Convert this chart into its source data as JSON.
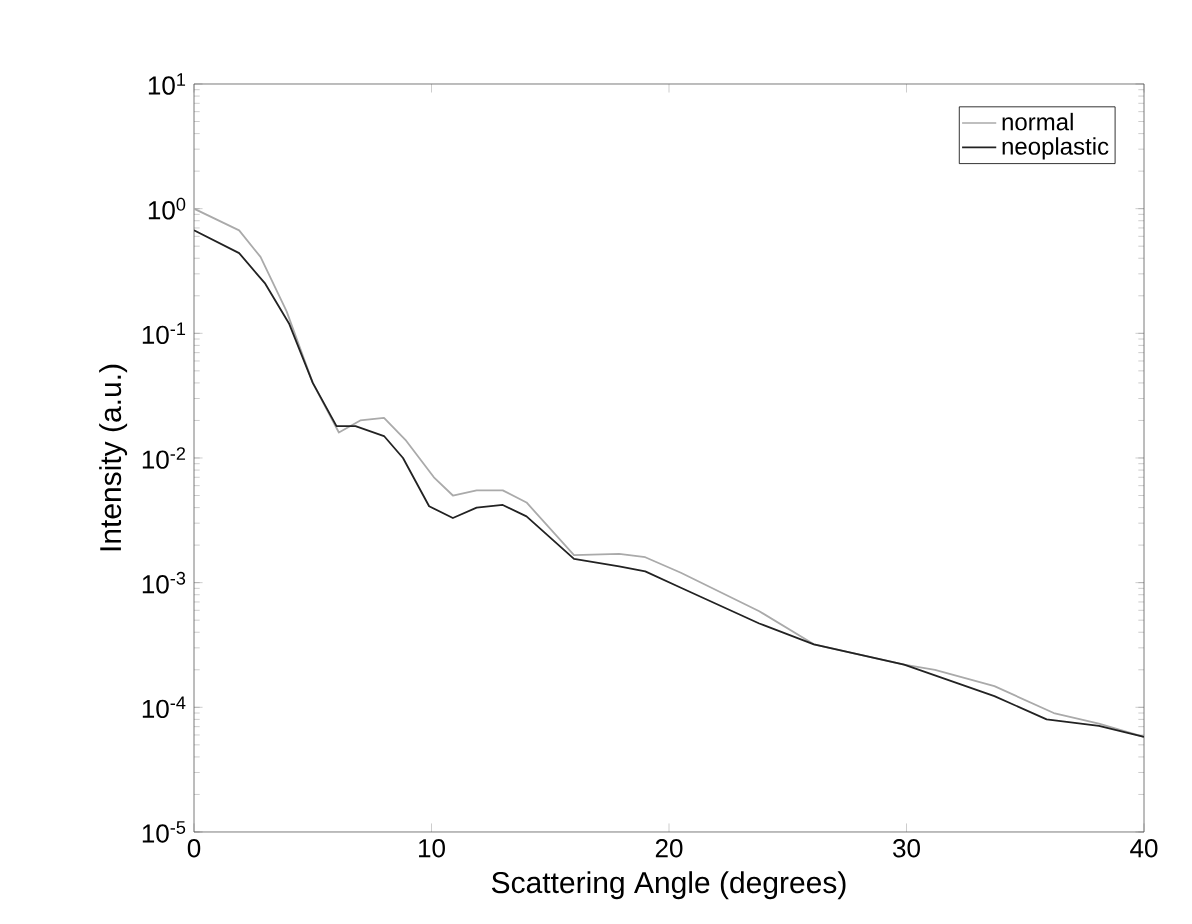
{
  "chart_data": {
    "type": "line",
    "xlabel": "Scattering Angle (degrees)",
    "ylabel": "Intensity (a.u.)",
    "log": "y",
    "legend": "top right",
    "grid": false,
    "marker": "none",
    "line_style": "solid",
    "xlim": [
      0,
      40
    ],
    "xticks": [
      0,
      10,
      20,
      30,
      40
    ],
    "ylim": [
      1e-05,
      10
    ],
    "yticks": [
      {
        "value": 1e-05,
        "label": "10$^{-5}$"
      },
      {
        "value": 0.0001,
        "label": "10$^{-4}$"
      },
      {
        "value": 0.001,
        "label": "10$^{-3}$"
      },
      {
        "value": 0.01,
        "label": "10$^{-2}$"
      },
      {
        "value": 0.1,
        "label": "10$^{-1}$"
      },
      {
        "value": 1,
        "label": "10$^{0}$"
      },
      {
        "value": 10,
        "label": "10$^{1}$"
      }
    ],
    "series": [
      {
        "name": "normal",
        "color": "#aaaaaa",
        "x": [
          0,
          1.9,
          2.8,
          3.9,
          5,
          6.1,
          7,
          8,
          8.9,
          10.1,
          10.9,
          11.9,
          13,
          14,
          16,
          17.9,
          19,
          20.5,
          23.8,
          26.1,
          29.9,
          31.2,
          33.7,
          36.2,
          38.1,
          40
        ],
        "values": [
          1.0,
          0.67,
          0.41,
          0.15,
          0.04,
          0.016,
          0.02,
          0.021,
          0.014,
          0.007,
          0.005,
          0.0055,
          0.0055,
          0.0044,
          0.00166,
          0.0017,
          0.0016,
          0.0012,
          0.00059,
          0.00032,
          0.00022,
          0.0002,
          0.000148,
          9e-05,
          7.4e-05,
          5.8e-05
        ]
      },
      {
        "name": "neoplastic",
        "color": "#222222",
        "x": [
          0,
          1.9,
          3,
          4,
          5,
          6,
          6.8,
          8,
          8.8,
          9.9,
          10.9,
          11.9,
          13,
          14,
          16,
          17.9,
          19,
          20.5,
          23.8,
          26.1,
          29.9,
          33.7,
          35.9,
          38.1,
          40
        ],
        "values": [
          0.67,
          0.44,
          0.25,
          0.12,
          0.04,
          0.018,
          0.018,
          0.015,
          0.01,
          0.0041,
          0.0033,
          0.004,
          0.0042,
          0.0034,
          0.00155,
          0.00135,
          0.00123,
          0.00091,
          0.00047,
          0.00032,
          0.00022,
          0.000123,
          8e-05,
          7.1e-05,
          5.8e-05
        ]
      }
    ]
  }
}
